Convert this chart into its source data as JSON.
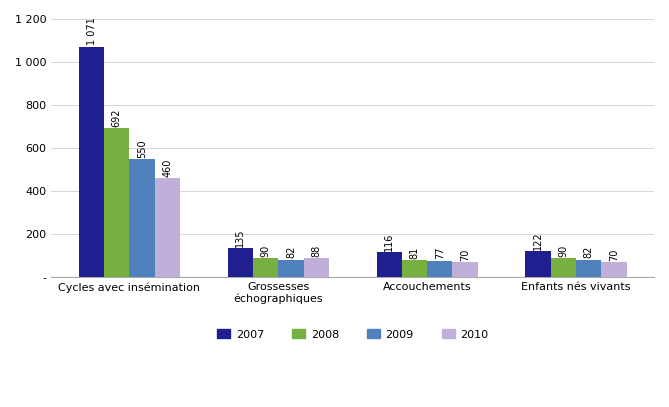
{
  "categories": [
    "Cycles avec insémination",
    "Grossesses\néchographiques",
    "Accouchements",
    "Enfants nés vivants"
  ],
  "years": [
    "2007",
    "2008",
    "2009",
    "2010"
  ],
  "values": [
    [
      1071,
      692,
      550,
      460
    ],
    [
      135,
      90,
      82,
      88
    ],
    [
      116,
      81,
      77,
      70
    ],
    [
      122,
      90,
      82,
      70
    ]
  ],
  "colors": [
    "#1f1f8f",
    "#76b041",
    "#4f81bd",
    "#c0afd9"
  ],
  "ylim": [
    0,
    1200
  ],
  "ytick_vals": [
    0,
    200,
    400,
    600,
    800,
    1000,
    1200
  ],
  "ytick_labels": [
    "-",
    "200",
    "400",
    "600",
    "800",
    "1 000",
    "1 200"
  ],
  "bar_width": 0.17,
  "label_fontsize": 7.0,
  "axis_fontsize": 8.0,
  "legend_fontsize": 8.0,
  "background_color": "#ffffff"
}
